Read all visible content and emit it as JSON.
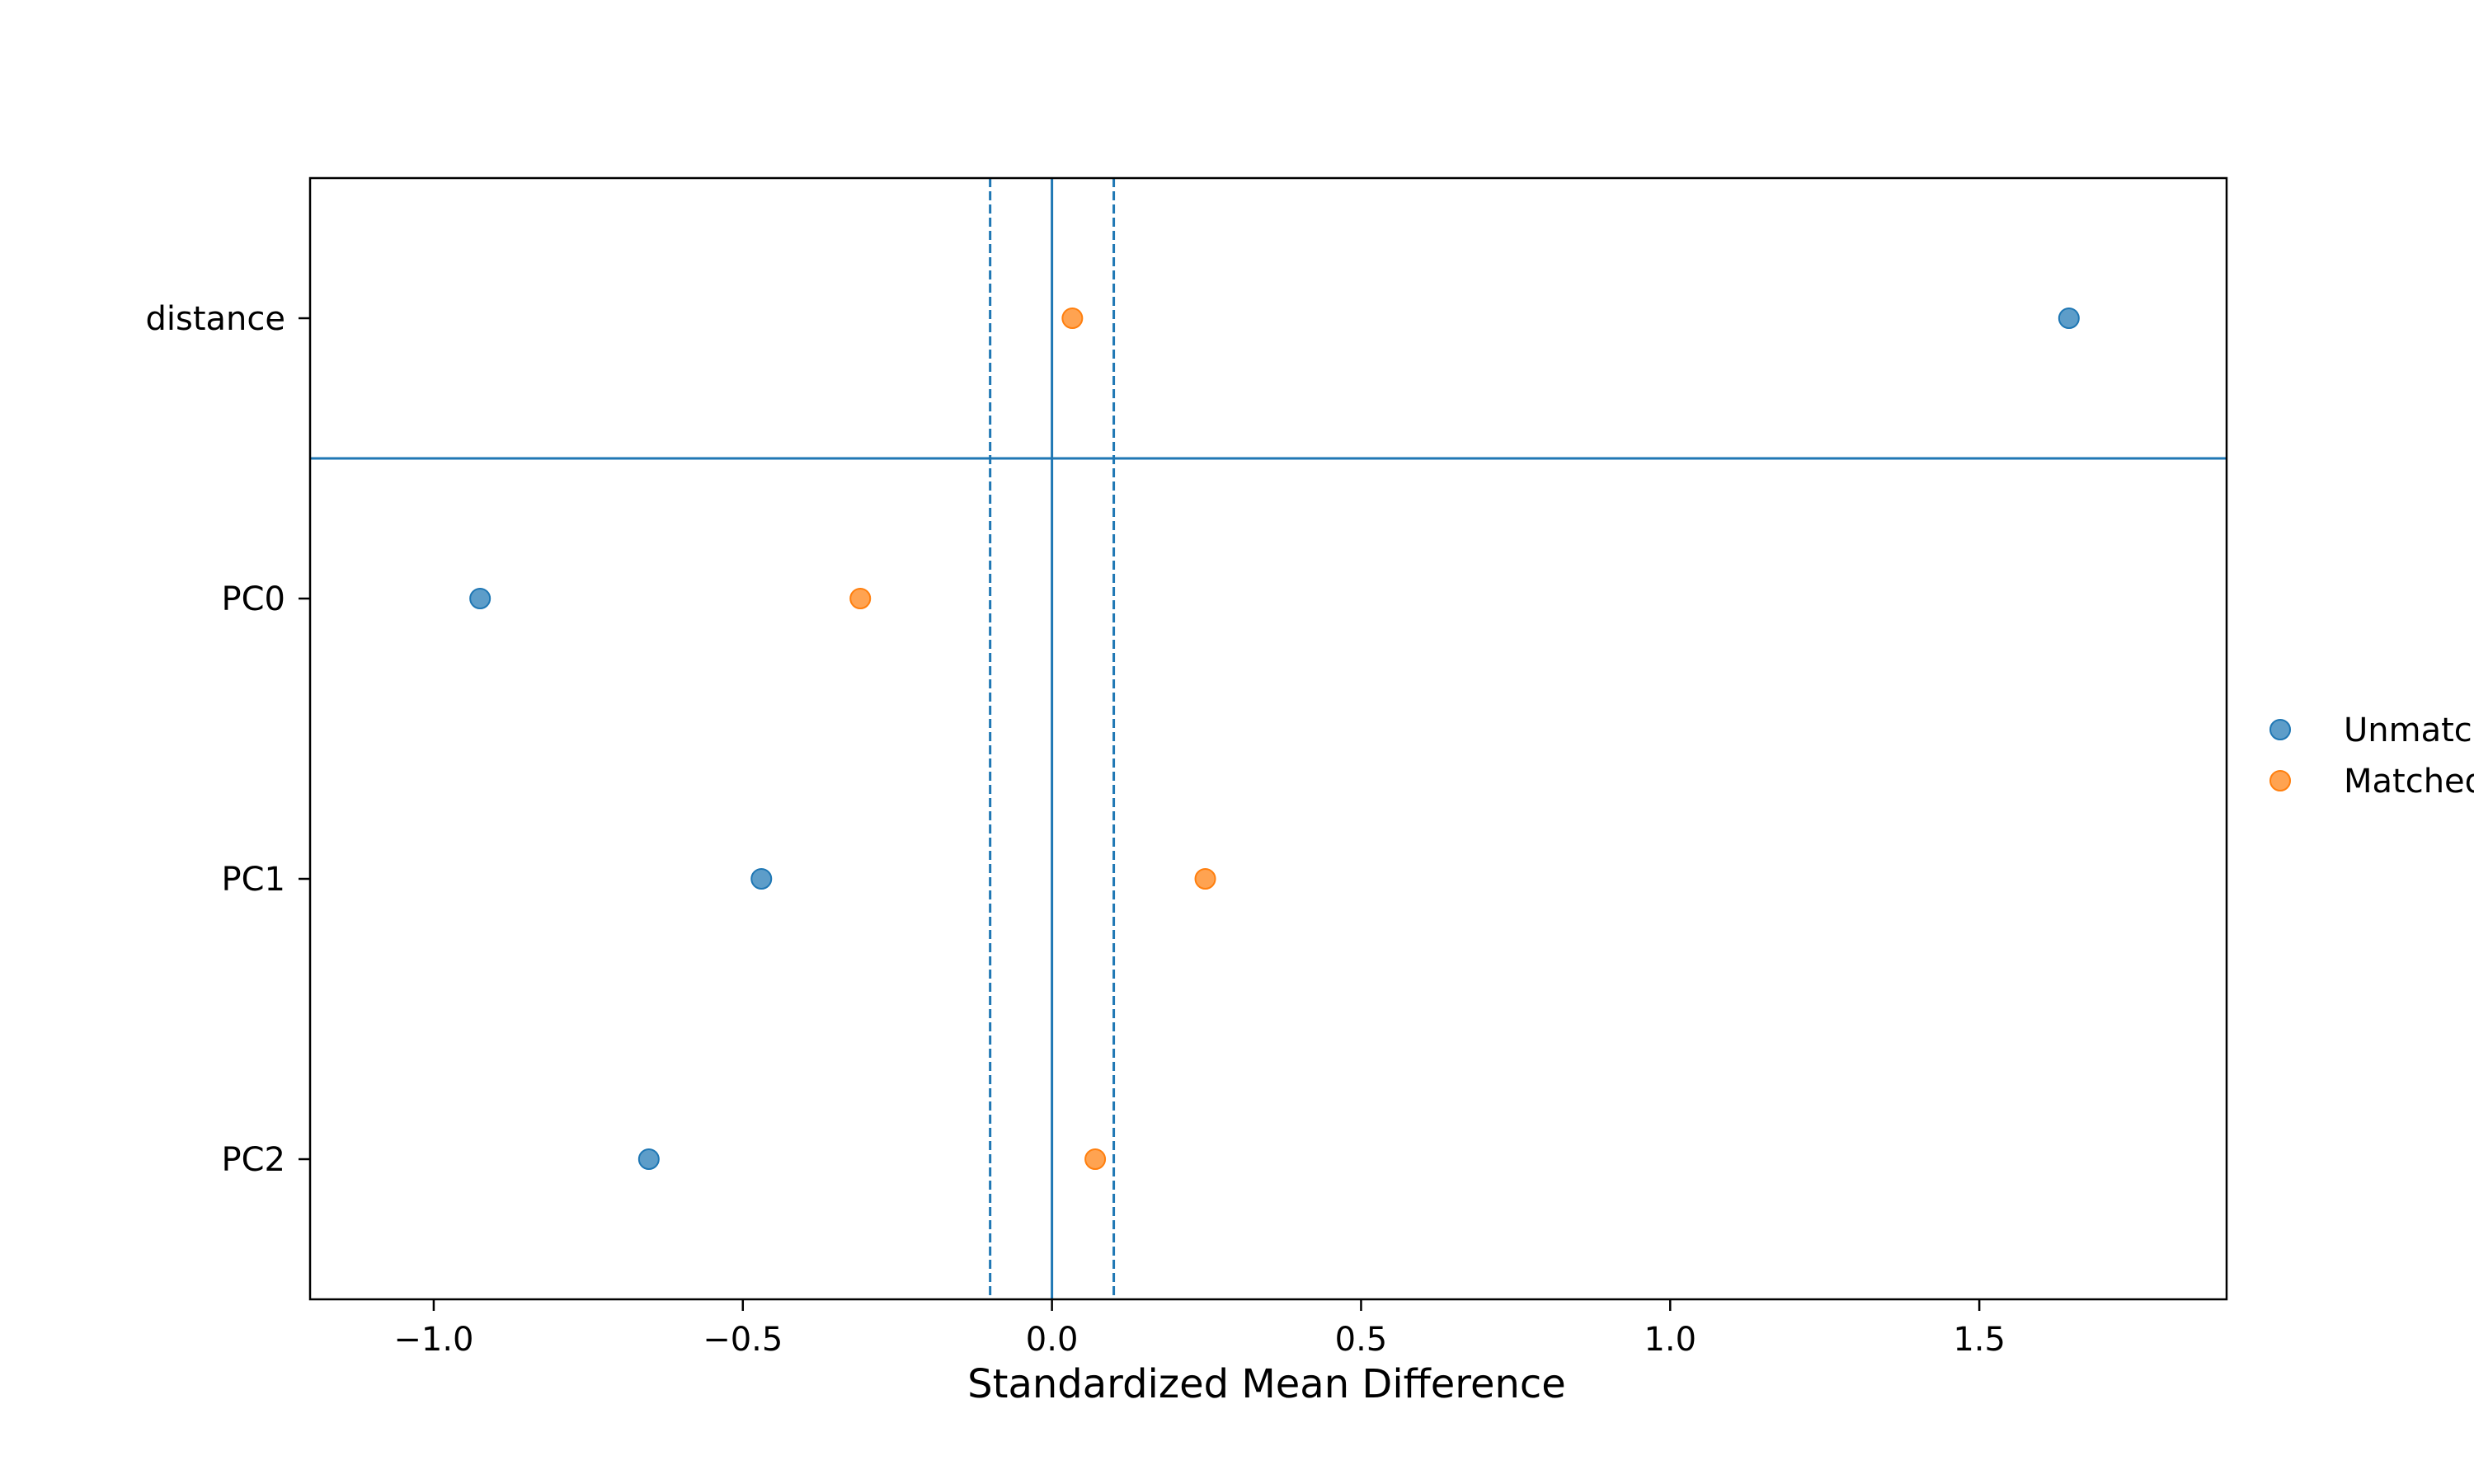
{
  "chart_data": {
    "type": "scatter",
    "title": "",
    "xlabel": "Standardized Mean Difference",
    "ylabel": "",
    "xlim": [
      -1.2,
      1.9
    ],
    "categories": [
      "distance",
      "PC0",
      "PC1",
      "PC2"
    ],
    "xticks": [
      -1.0,
      -0.5,
      0.0,
      0.5,
      1.0,
      1.5
    ],
    "xtick_labels": [
      "−1.0",
      "−0.5",
      "0.0",
      "0.5",
      "1.0",
      "1.5"
    ],
    "series": [
      {
        "name": "Unmatched",
        "color": "#1f77b4",
        "values": [
          1.645,
          -0.925,
          -0.47,
          -0.652
        ]
      },
      {
        "name": "Matched",
        "color": "#ff7f0e",
        "values": [
          0.033,
          -0.31,
          0.248,
          0.07
        ]
      }
    ],
    "reference_lines": {
      "solid_vertical_x": 0.0,
      "dashed_vertical_x": [
        -0.1,
        0.1
      ],
      "separator": "between distance and PC0",
      "color": "#1f77b4"
    },
    "grid": false,
    "legend_position": "right, outside plot"
  }
}
